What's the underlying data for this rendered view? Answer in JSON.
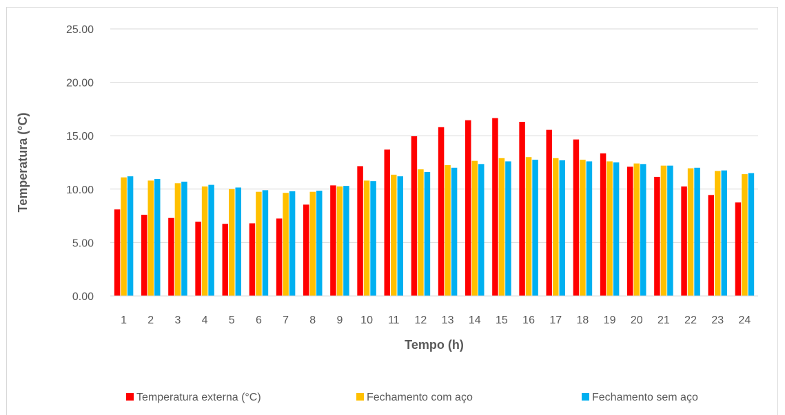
{
  "chart_data": {
    "type": "bar",
    "title": "",
    "xlabel": "Tempo (h)",
    "ylabel": "Temperatura (°C)",
    "ylim": [
      0,
      25
    ],
    "yticks": [
      "0.00",
      "5.00",
      "10.00",
      "15.00",
      "20.00",
      "25.00"
    ],
    "grid": true,
    "legend_position": "bottom",
    "categories": [
      "1",
      "2",
      "3",
      "4",
      "5",
      "6",
      "7",
      "8",
      "9",
      "10",
      "11",
      "12",
      "13",
      "14",
      "15",
      "16",
      "17",
      "18",
      "19",
      "20",
      "21",
      "22",
      "23",
      "24"
    ],
    "series": [
      {
        "name": "Temperatura externa (°C)",
        "color": "#ff0000",
        "values": [
          8.1,
          7.6,
          7.3,
          6.95,
          6.75,
          6.8,
          7.25,
          8.55,
          10.35,
          12.15,
          13.7,
          14.95,
          15.8,
          16.45,
          16.65,
          16.3,
          15.55,
          14.65,
          13.35,
          12.1,
          11.15,
          10.25,
          9.45,
          8.75
        ]
      },
      {
        "name": "Fechamento com aço",
        "color": "#ffc000",
        "values": [
          11.1,
          10.8,
          10.55,
          10.25,
          10.0,
          9.75,
          9.65,
          9.75,
          10.25,
          10.8,
          11.35,
          11.85,
          12.25,
          12.65,
          12.9,
          13.0,
          12.9,
          12.75,
          12.6,
          12.4,
          12.2,
          11.95,
          11.7,
          11.4
        ]
      },
      {
        "name": "Fechamento sem aço",
        "color": "#00b0f0",
        "values": [
          11.2,
          10.95,
          10.7,
          10.4,
          10.15,
          9.9,
          9.8,
          9.85,
          10.3,
          10.75,
          11.2,
          11.6,
          12.0,
          12.35,
          12.6,
          12.75,
          12.7,
          12.6,
          12.5,
          12.35,
          12.2,
          12.0,
          11.75,
          11.5
        ]
      }
    ]
  }
}
